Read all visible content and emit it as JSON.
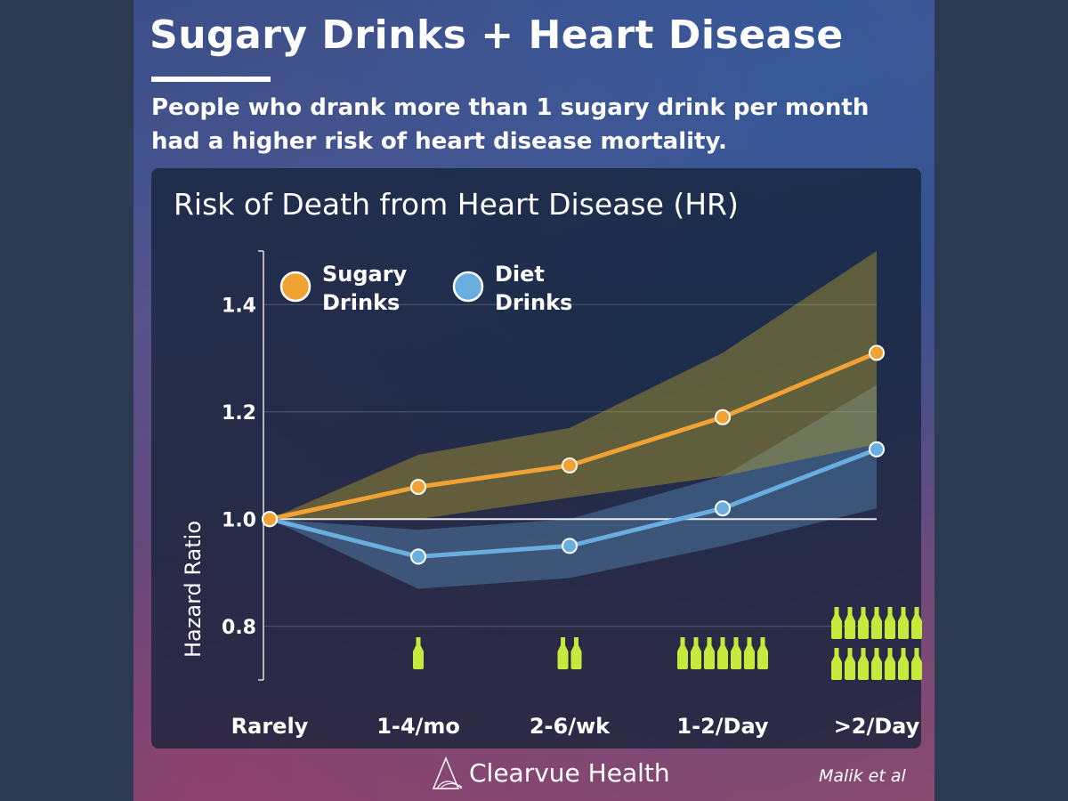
{
  "title": "Sugary Drinks + Heart Disease",
  "subtitle": "People who drank more than 1 sugary drink per month had a higher risk of heart disease mortality.",
  "brand": "Clearvue Health",
  "citation": "Malik et al",
  "colors": {
    "sugary": "#f0a234",
    "diet": "#6aaee0",
    "bottle": "#c6ea3c"
  },
  "chart_data": {
    "type": "line",
    "title": "Risk of Death from Heart Disease (HR)",
    "ylabel": "Hazard Ratio",
    "xlabel": "",
    "categories": [
      "Rarely",
      "1-4/mo",
      "2-6/wk",
      "1-2/Day",
      ">2/Day"
    ],
    "ylim": [
      0.7,
      1.5
    ],
    "yticks": [
      0.8,
      1.0,
      1.2,
      1.4
    ],
    "ytick_labels": [
      "0.8",
      "1.0",
      "1.2",
      "1.4"
    ],
    "reference_line": 1.0,
    "legend_position": "top-left",
    "grid": true,
    "series": [
      {
        "name": "Sugary Drinks",
        "values": [
          1.0,
          1.06,
          1.1,
          1.19,
          1.31
        ],
        "ci_upper": [
          1.0,
          1.12,
          1.17,
          1.31,
          1.5
        ],
        "ci_lower": [
          1.0,
          1.0,
          1.04,
          1.08,
          1.14
        ]
      },
      {
        "name": "Diet Drinks",
        "values": [
          1.0,
          0.93,
          0.95,
          1.02,
          1.13
        ],
        "ci_upper": [
          1.0,
          0.98,
          1.0,
          1.08,
          1.25
        ],
        "ci_lower": [
          1.0,
          0.87,
          0.89,
          0.95,
          1.02
        ]
      }
    ],
    "bottle_icons": [
      0,
      1,
      2,
      7,
      14
    ]
  }
}
